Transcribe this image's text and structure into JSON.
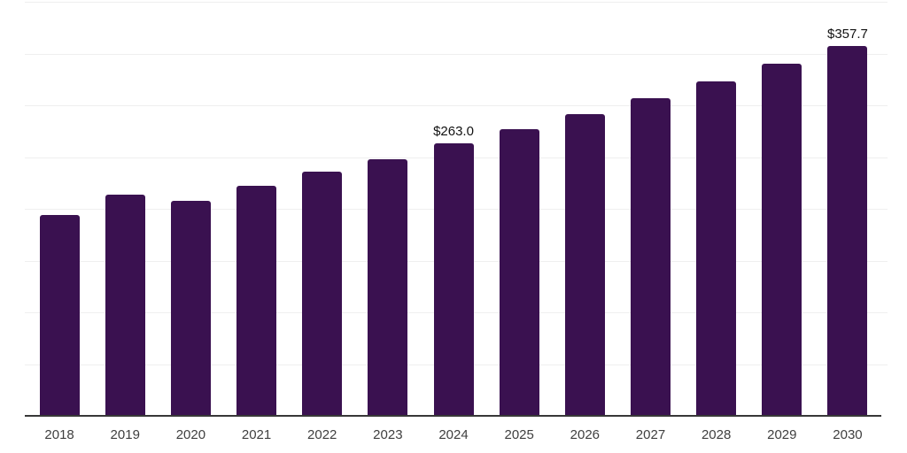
{
  "chart_data": {
    "type": "bar",
    "title": "",
    "xlabel": "",
    "ylabel": "",
    "categories": [
      "2018",
      "2019",
      "2020",
      "2021",
      "2022",
      "2023",
      "2024",
      "2025",
      "2026",
      "2027",
      "2028",
      "2029",
      "2030"
    ],
    "values": [
      194.0,
      213.6,
      207.5,
      222.4,
      235.6,
      248.0,
      263.0,
      276.8,
      291.4,
      306.7,
      322.9,
      339.9,
      357.7
    ],
    "data_labels": [
      "",
      "",
      "",
      "",
      "",
      "",
      "$263.0",
      "",
      "",
      "",
      "",
      "",
      "$357.7"
    ],
    "ylim": [
      0,
      400
    ],
    "gridline_step": 50,
    "grid": true,
    "legend": false,
    "value_prefix": "$"
  },
  "colors": {
    "bar": "#3A1150",
    "gridline": "#efefef",
    "axis_line": "#383838",
    "x_label": "#3f3f3f",
    "value_label": "#111111",
    "background": "#ffffff"
  }
}
